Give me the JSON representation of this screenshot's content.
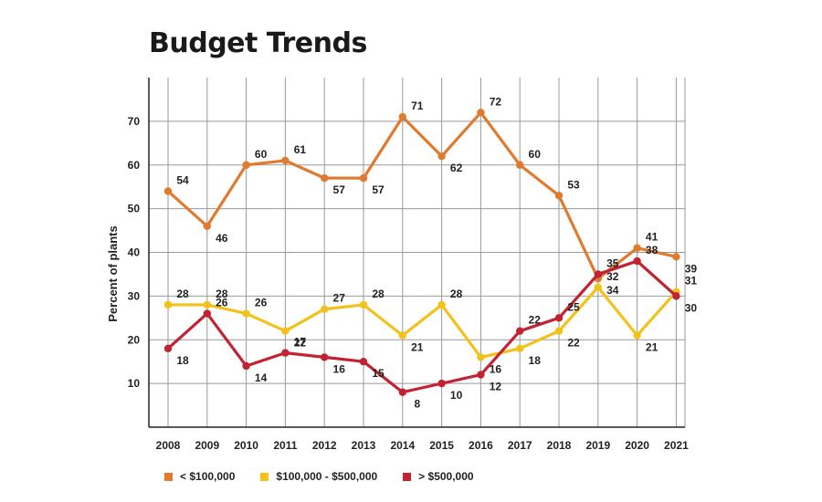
{
  "chart_data": {
    "type": "line",
    "title": "Budget Trends",
    "ylabel": "Percent of plants",
    "xlabel": "",
    "x": [
      "2008",
      "2009",
      "2010",
      "2011",
      "2012",
      "2013",
      "2014",
      "2015",
      "2016",
      "2017",
      "2018",
      "2019",
      "2020",
      "2021"
    ],
    "ylim": [
      0,
      80
    ],
    "yticks": [
      10,
      20,
      30,
      40,
      50,
      60,
      70
    ],
    "grid": true,
    "legend_position": "bottom",
    "series": [
      {
        "name": "< $100,000",
        "color": "#e07a2e",
        "values": [
          54,
          46,
          60,
          61,
          57,
          57,
          71,
          62,
          72,
          60,
          53,
          34,
          41,
          39
        ]
      },
      {
        "name": "$100,000 - $500,000",
        "color": "#f2c21b",
        "values": [
          28,
          28,
          26,
          22,
          27,
          28,
          21,
          28,
          16,
          18,
          22,
          32,
          21,
          31
        ]
      },
      {
        "name": "> $500,000",
        "color": "#c22333",
        "values": [
          18,
          26,
          14,
          17,
          16,
          15,
          8,
          10,
          12,
          22,
          25,
          35,
          38,
          30
        ]
      }
    ]
  }
}
